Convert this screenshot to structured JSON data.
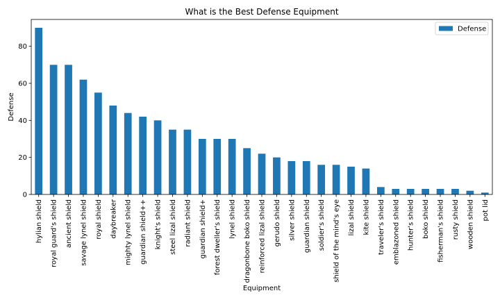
{
  "chart_data": {
    "type": "bar",
    "title": "What is the Best Defense Equipment",
    "xlabel": "Equipment",
    "ylabel": "Defense",
    "ylim": [
      0,
      94.5
    ],
    "yticks": [
      0,
      20,
      40,
      60,
      80
    ],
    "grid": false,
    "legend_position": "top-right",
    "categories": [
      "hylian shield",
      "royal guard's shield",
      "ancient shield",
      "savage lynel shield",
      "royal shield",
      "daybreaker",
      "mighty lynel shield",
      "guardian shield++",
      "knight's shield",
      "steel lizal shield",
      "radiant shield",
      "guardian shield+",
      "forest dweller's shield",
      "lynel shield",
      "dragonbone boko shield",
      "reinforced lizal shield",
      "gerudo shield",
      "silver shield",
      "guardian shield",
      "soldier's shield",
      "shield of the mind's eye",
      "lizal shield",
      "kite shield",
      "traveler's shield",
      "emblazoned shield",
      "hunter's shield",
      "boko shield",
      "fisherman's shield",
      "rusty shield",
      "wooden shield",
      "pot lid"
    ],
    "series": [
      {
        "name": "Defense",
        "color": "#1f77b4",
        "values": [
          90,
          70,
          70,
          62,
          55,
          48,
          44,
          42,
          40,
          35,
          35,
          30,
          30,
          30,
          25,
          22,
          20,
          18,
          18,
          16,
          16,
          15,
          14,
          4,
          3,
          3,
          3,
          3,
          3,
          2,
          1
        ]
      }
    ]
  }
}
